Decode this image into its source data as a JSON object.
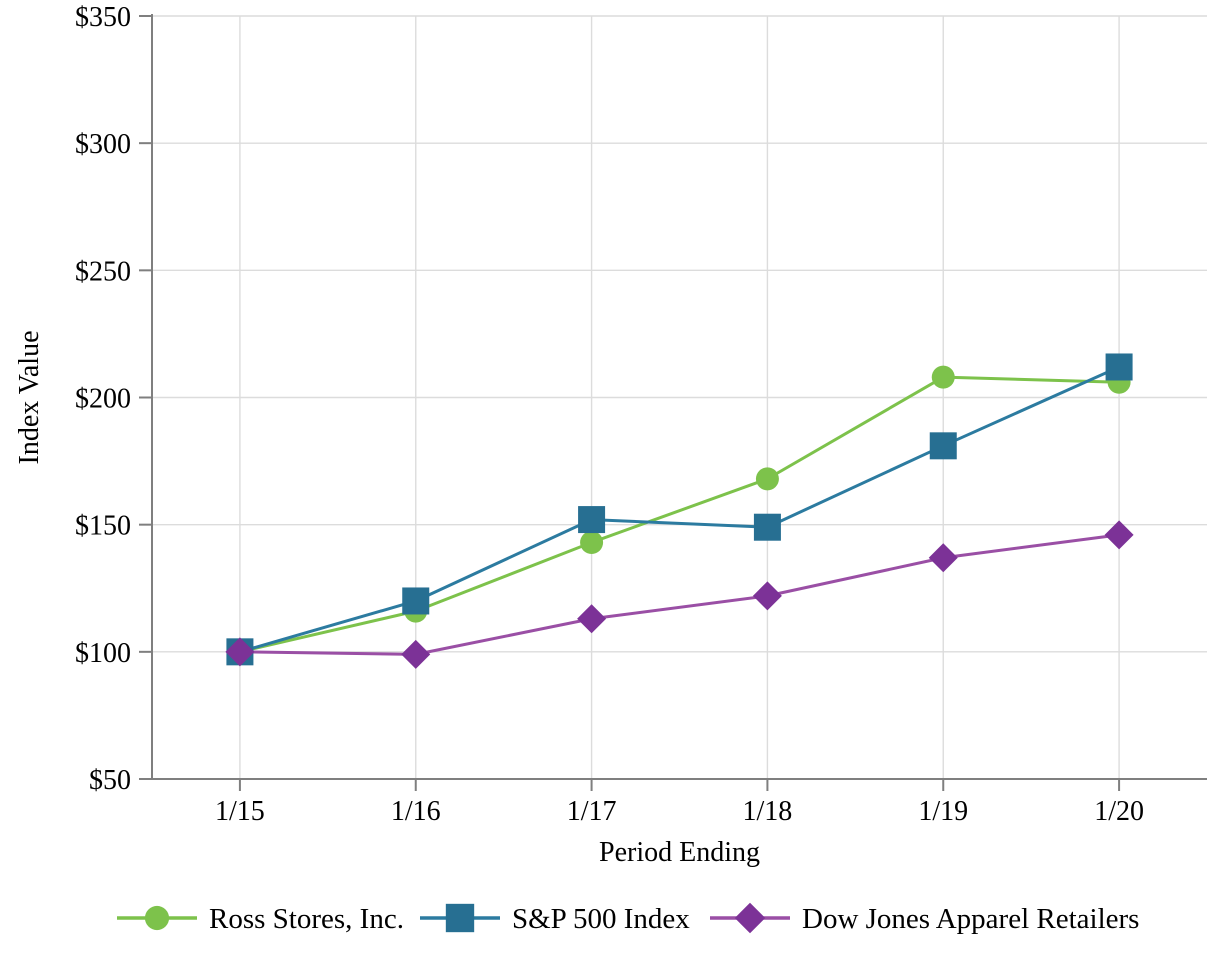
{
  "chart_data": {
    "type": "line",
    "title": "",
    "xlabel": "Period Ending",
    "ylabel": "Index Value",
    "categories": [
      "1/15",
      "1/16",
      "1/17",
      "1/18",
      "1/19",
      "1/20"
    ],
    "series": [
      {
        "name": "Ross Stores, Inc.",
        "marker": "circle",
        "line_color": "#7dc24b",
        "marker_color": "#7dc24b",
        "values": [
          100,
          116,
          143,
          168,
          208,
          206
        ]
      },
      {
        "name": "S&P 500 Index",
        "marker": "square",
        "line_color": "#2c7ba0",
        "marker_color": "#276f92",
        "values": [
          100,
          120,
          152,
          149,
          181,
          212
        ]
      },
      {
        "name": "Dow Jones Apparel Retailers",
        "marker": "diamond",
        "line_color": "#9a4fa5",
        "marker_color": "#7c3297",
        "values": [
          100,
          99,
          113,
          122,
          137,
          146
        ]
      }
    ],
    "ylim": [
      50,
      350
    ],
    "ytick_step": 50,
    "ytick_prefix": "$",
    "grid": true,
    "legend_position": "bottom",
    "axis_color": "#7f7f7f",
    "gridline_color": "#dcdcdc",
    "background_color": "#ffffff"
  }
}
